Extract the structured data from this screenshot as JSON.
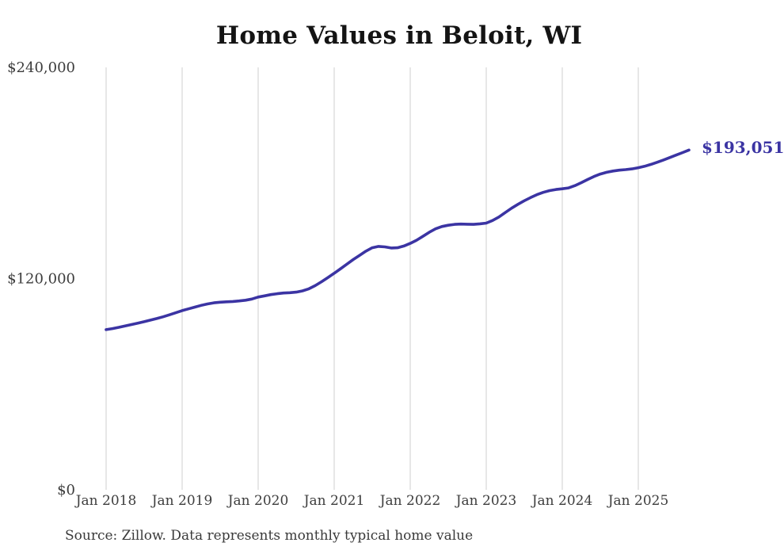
{
  "chart_data": {
    "type": "line",
    "title": "Home Values in Beloit, WI",
    "annotation_latest_value": "$193,051",
    "source_note": "Source: Zillow. Data represents monthly typical home value",
    "legend": "none",
    "grid": "vertical-only",
    "ylim": [
      0,
      240000
    ],
    "y_ticks": [
      {
        "value": 0,
        "label": "$0"
      },
      {
        "value": 120000,
        "label": "$120,000"
      },
      {
        "value": 240000,
        "label": "$240,000"
      }
    ],
    "x_tick_labels": [
      "Jan 2018",
      "Jan 2019",
      "Jan 2020",
      "Jan 2021",
      "Jan 2022",
      "Jan 2023",
      "Jan 2024",
      "Jan 2025"
    ],
    "x_start_month": "2018-01",
    "x_end_month": "2025-09",
    "line_color": "#3b34a3",
    "gridline_color": "#cfcfcf",
    "series": [
      {
        "name": "Monthly typical home value",
        "values": [
          91000,
          91600,
          92300,
          93100,
          93900,
          94700,
          95500,
          96400,
          97300,
          98300,
          99400,
          100600,
          101800,
          102800,
          103800,
          104800,
          105600,
          106200,
          106600,
          106800,
          107000,
          107300,
          107700,
          108400,
          109500,
          110200,
          110900,
          111400,
          111800,
          112000,
          112300,
          113000,
          114200,
          116000,
          118200,
          120600,
          123000,
          125600,
          128200,
          130800,
          133200,
          135600,
          137500,
          138300,
          138000,
          137400,
          137500,
          138500,
          140000,
          141800,
          144000,
          146300,
          148300,
          149600,
          150300,
          150800,
          151000,
          150900,
          150800,
          151100,
          151500,
          153000,
          155000,
          157500,
          160000,
          162200,
          164200,
          166000,
          167700,
          169000,
          170000,
          170600,
          171000,
          171500,
          172800,
          174500,
          176300,
          178000,
          179400,
          180400,
          181100,
          181600,
          181900,
          182300,
          183000,
          183800,
          184900,
          186100,
          187400,
          188800,
          190200,
          191600,
          193051
        ]
      }
    ]
  }
}
